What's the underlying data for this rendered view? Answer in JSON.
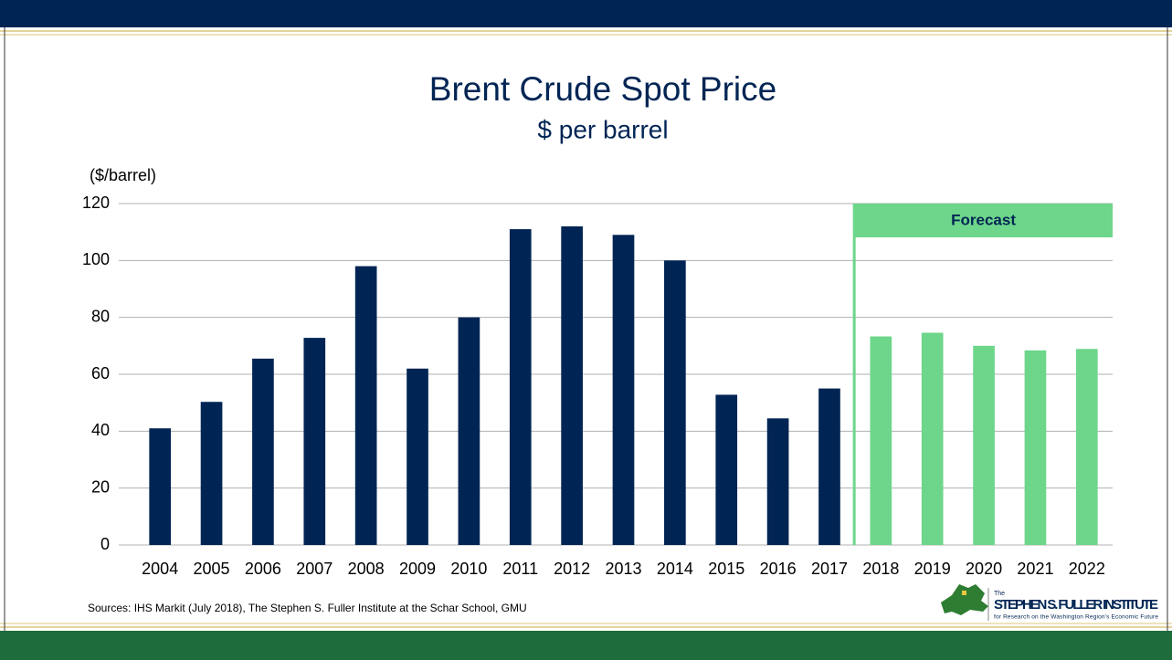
{
  "chart_data": {
    "type": "bar",
    "title": "Brent Crude Spot Price",
    "subtitle": "$ per barrel",
    "y_label": "($/barrel)",
    "categories": [
      "2004",
      "2005",
      "2006",
      "2007",
      "2008",
      "2009",
      "2010",
      "2011",
      "2012",
      "2013",
      "2014",
      "2015",
      "2016",
      "2017",
      "2018",
      "2019",
      "2020",
      "2021",
      "2022"
    ],
    "values": [
      41,
      50.3,
      65.5,
      72.8,
      98,
      62,
      80,
      111,
      112,
      109,
      100,
      52.8,
      44.5,
      55,
      73.3,
      74.6,
      70,
      68.4,
      68.9
    ],
    "colors": [
      "#002554",
      "#002554",
      "#002554",
      "#002554",
      "#002554",
      "#002554",
      "#002554",
      "#002554",
      "#002554",
      "#002554",
      "#002554",
      "#002554",
      "#002554",
      "#002554",
      "#6dd68a",
      "#6dd68a",
      "#6dd68a",
      "#6dd68a",
      "#6dd68a"
    ],
    "ylim": [
      0,
      120
    ],
    "yticks": [
      0,
      20,
      40,
      60,
      80,
      100,
      120
    ],
    "grid": true,
    "annotation": {
      "text": "Forecast",
      "from": "2018",
      "color": "#6dd68a"
    },
    "source": "Sources: IHS Markit (July 2018), The Stephen S. Fuller Institute at the Schar School, GMU",
    "logo": {
      "small": "The",
      "name": "STEPHEN S. FULLER INSTITUTE",
      "tagline": "for Research on the Washington Region's Economic Future"
    }
  }
}
